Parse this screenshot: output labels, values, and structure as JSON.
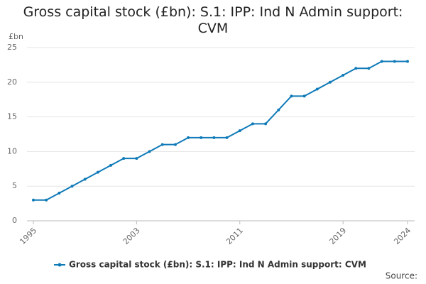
{
  "chart_data": {
    "type": "line",
    "title": "Gross capital stock (£bn): S.1: IPP: Ind N Admin support: CVM",
    "y_label": "£bn",
    "source": "Source:",
    "x": [
      1995,
      1996,
      1997,
      1998,
      1999,
      2000,
      2001,
      2002,
      2003,
      2004,
      2005,
      2006,
      2007,
      2008,
      2009,
      2010,
      2011,
      2012,
      2013,
      2014,
      2015,
      2016,
      2017,
      2018,
      2019,
      2020,
      2021,
      2022,
      2023,
      2024
    ],
    "series": [
      {
        "name": "Gross capital stock (£bn): S.1: IPP: Ind N Admin support: CVM",
        "color": "#0f7ab8",
        "values": [
          3,
          3,
          4,
          5,
          6,
          7,
          8,
          9,
          9,
          10,
          11,
          11,
          12,
          12,
          12,
          12,
          13,
          14,
          14,
          16,
          18,
          18,
          19,
          20,
          21,
          22,
          22,
          23,
          23,
          23
        ]
      }
    ],
    "xlim": [
      1995,
      2024
    ],
    "xticks": [
      1995,
      2003,
      2011,
      2019,
      2024
    ],
    "ylim": [
      0,
      25
    ],
    "yticks": [
      0,
      5,
      10,
      15,
      20,
      25
    ],
    "grid": true
  }
}
